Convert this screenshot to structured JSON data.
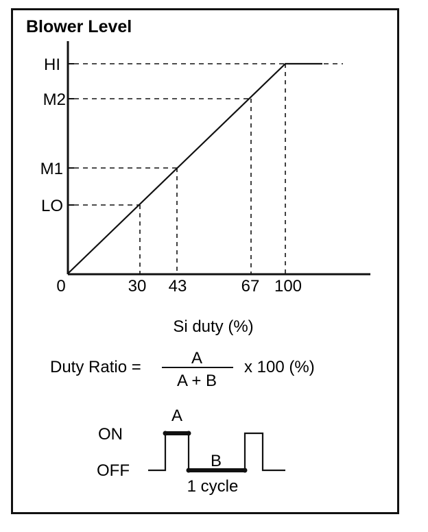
{
  "title": "Blower Level",
  "y_levels": [
    {
      "label": "HI",
      "si_duty": 100
    },
    {
      "label": "M2",
      "si_duty": 67
    },
    {
      "label": "M1",
      "si_duty": 43
    },
    {
      "label": "LO",
      "si_duty": 30
    }
  ],
  "x_ticks": [
    "0",
    "30",
    "43",
    "67",
    "100"
  ],
  "x_axis_label": "Si duty (%)",
  "formula": {
    "left": "Duty Ratio =",
    "numerator": "A",
    "denominator": "A + B",
    "right": "x 100 (%)"
  },
  "waveform": {
    "on_label": "ON",
    "off_label": "OFF",
    "a_label": "A",
    "b_label": "B",
    "cycle_label": "1 cycle"
  },
  "colors": {
    "line": "#111111",
    "background": "#ffffff"
  }
}
